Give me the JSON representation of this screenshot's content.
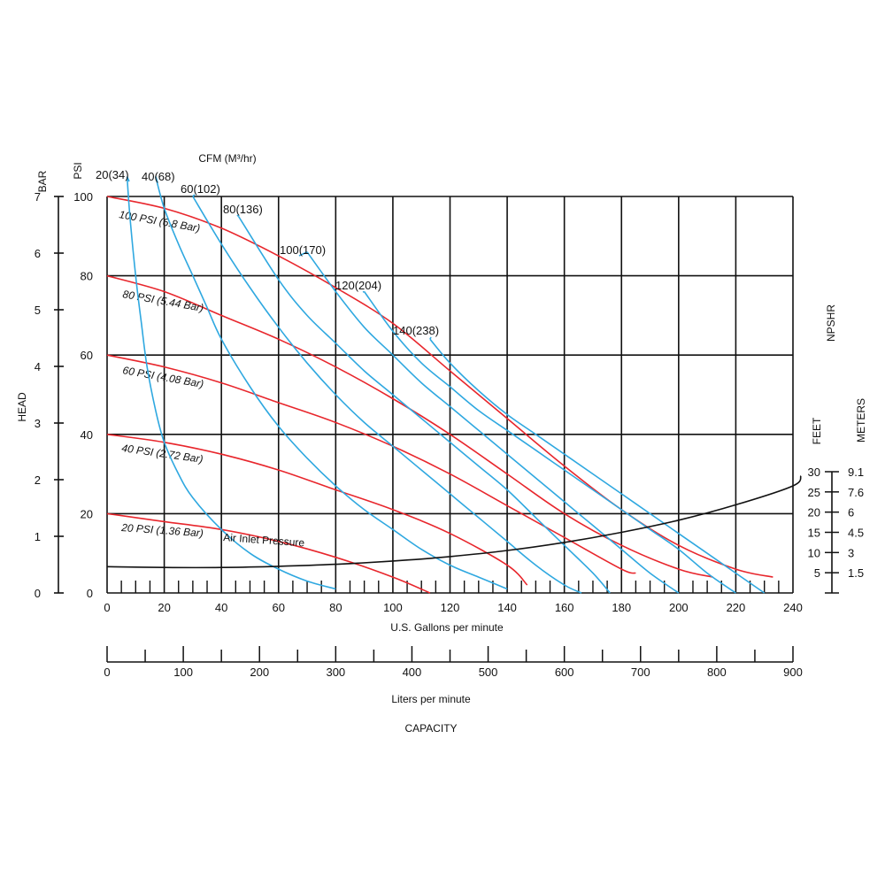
{
  "chart_data": {
    "type": "line",
    "x_axis": {
      "label": "U.S. Gallons per minute",
      "range": [
        0,
        240
      ],
      "ticks": [
        "0",
        "20",
        "40",
        "60",
        "80",
        "100",
        "120",
        "140",
        "160",
        "180",
        "200",
        "220",
        "240"
      ]
    },
    "liters_axis": {
      "label": "Liters per minute",
      "range": [
        0,
        900
      ],
      "ticks": [
        "0",
        "100",
        "200",
        "300",
        "400",
        "500",
        "600",
        "700",
        "800",
        "900"
      ]
    },
    "capacity_label": "CAPACITY",
    "y_axis_psi": {
      "label": "PSI",
      "range": [
        0,
        100
      ],
      "ticks": [
        "0",
        "20",
        "40",
        "60",
        "80",
        "100"
      ]
    },
    "y_axis_bar": {
      "label": "BAR",
      "range": [
        0,
        7
      ],
      "ticks": [
        "0",
        "1",
        "2",
        "3",
        "4",
        "5",
        "6",
        "7"
      ]
    },
    "head_label": "HEAD",
    "cfm_title": "CFM (M³/hr)",
    "npshr_label": "NPSHR",
    "feet_label": "FEET",
    "meters_label": "METERS",
    "npshr_feet_ticks": [
      "5",
      "10",
      "15",
      "20",
      "25",
      "30"
    ],
    "npshr_meters_ticks": [
      "1.5",
      "3",
      "4.5",
      "6",
      "7.6",
      "9.1"
    ],
    "air_inlet_label": "Air Inlet Pressure",
    "grid": true,
    "pressure_curves": [
      {
        "label": "100 PSI (6.8 Bar)",
        "x": [
          0,
          20,
          40,
          60,
          80,
          100,
          120,
          140,
          160,
          180,
          200,
          220,
          233
        ],
        "y": [
          100,
          97,
          92,
          85,
          77,
          68,
          56,
          44,
          32,
          21,
          12,
          6,
          4
        ]
      },
      {
        "label": "80 PSI (5.44 Bar)",
        "x": [
          0,
          20,
          40,
          60,
          80,
          100,
          120,
          140,
          160,
          180,
          200,
          212
        ],
        "y": [
          80,
          76,
          70,
          64,
          57,
          49,
          40,
          30,
          20,
          12,
          6,
          4
        ]
      },
      {
        "label": "60 PSI (4.08 Bar)",
        "x": [
          0,
          20,
          40,
          60,
          80,
          100,
          120,
          140,
          160,
          180,
          185
        ],
        "y": [
          60,
          57,
          53,
          48,
          43,
          37,
          30,
          22,
          14,
          6,
          5
        ]
      },
      {
        "label": "40 PSI (2.72 Bar)",
        "x": [
          0,
          20,
          40,
          60,
          80,
          100,
          120,
          140,
          147
        ],
        "y": [
          40,
          38,
          35,
          31,
          26,
          21,
          15,
          7,
          2
        ]
      },
      {
        "label": "20 PSI (1.36 Bar)",
        "x": [
          0,
          20,
          40,
          60,
          80,
          100,
          113
        ],
        "y": [
          20,
          18,
          16,
          13,
          9,
          4,
          0
        ]
      }
    ],
    "air_consumption_curves": [
      {
        "label": "20(34)",
        "x": [
          7,
          8,
          10,
          12,
          14,
          17,
          20,
          25,
          30,
          40,
          50,
          60,
          70,
          80
        ],
        "y": [
          105,
          95,
          80,
          68,
          57,
          46,
          38,
          30,
          24,
          16,
          10,
          6,
          3,
          1
        ]
      },
      {
        "label": "40(68)",
        "x": [
          17,
          20,
          25,
          30,
          35,
          40,
          50,
          60,
          70,
          80,
          90,
          100,
          110,
          120,
          130,
          140
        ],
        "y": [
          105,
          97,
          88,
          80,
          72,
          64,
          52,
          42,
          34,
          27,
          21,
          16,
          11,
          7,
          4,
          1
        ]
      },
      {
        "label": "60(102)",
        "x": [
          30,
          40,
          50,
          60,
          70,
          80,
          90,
          100,
          110,
          120,
          130,
          140,
          150,
          160,
          166
        ],
        "y": [
          100,
          88,
          77,
          67,
          58,
          50,
          43,
          37,
          31,
          25,
          19,
          13,
          7,
          2,
          0
        ]
      },
      {
        "label": "80(136)",
        "x": [
          46,
          60,
          70,
          80,
          90,
          100,
          110,
          120,
          130,
          140,
          150,
          160,
          170,
          176
        ],
        "y": [
          95,
          79,
          70,
          63,
          56,
          50,
          44,
          38,
          32,
          26,
          19,
          12,
          5,
          0
        ]
      },
      {
        "label": "100(170)",
        "x": [
          70,
          80,
          90,
          100,
          110,
          120,
          130,
          140,
          150,
          160,
          170,
          180,
          190,
          200
        ],
        "y": [
          86,
          76,
          67,
          60,
          53,
          47,
          41,
          35,
          29,
          23,
          17,
          11,
          5,
          0
        ]
      },
      {
        "label": "120(204)",
        "x": [
          90,
          100,
          110,
          120,
          130,
          140,
          150,
          160,
          170,
          180,
          190,
          200,
          210,
          220
        ],
        "y": [
          76,
          66,
          58,
          52,
          46,
          41,
          36,
          31,
          26,
          21,
          16,
          11,
          5,
          0
        ]
      },
      {
        "label": "140(238)",
        "x": [
          113,
          120,
          130,
          140,
          150,
          160,
          170,
          180,
          190,
          200,
          210,
          220,
          230
        ],
        "y": [
          64,
          58,
          51,
          45,
          40,
          35,
          30,
          25,
          20,
          15,
          10,
          5,
          0
        ]
      }
    ],
    "npshr_curve": {
      "x": [
        0,
        20,
        40,
        60,
        80,
        100,
        120,
        140,
        160,
        180,
        200,
        220,
        240
      ],
      "feet": [
        6.5,
        6.3,
        6.3,
        6.6,
        7.1,
        7.9,
        9.0,
        10.5,
        12.5,
        15.0,
        18.0,
        21.8,
        26.5
      ]
    },
    "colors": {
      "pressure_curve": "#e8262c",
      "air_curve": "#2fa8e0",
      "npshr_curve": "#111111",
      "grid": "#111111"
    }
  }
}
